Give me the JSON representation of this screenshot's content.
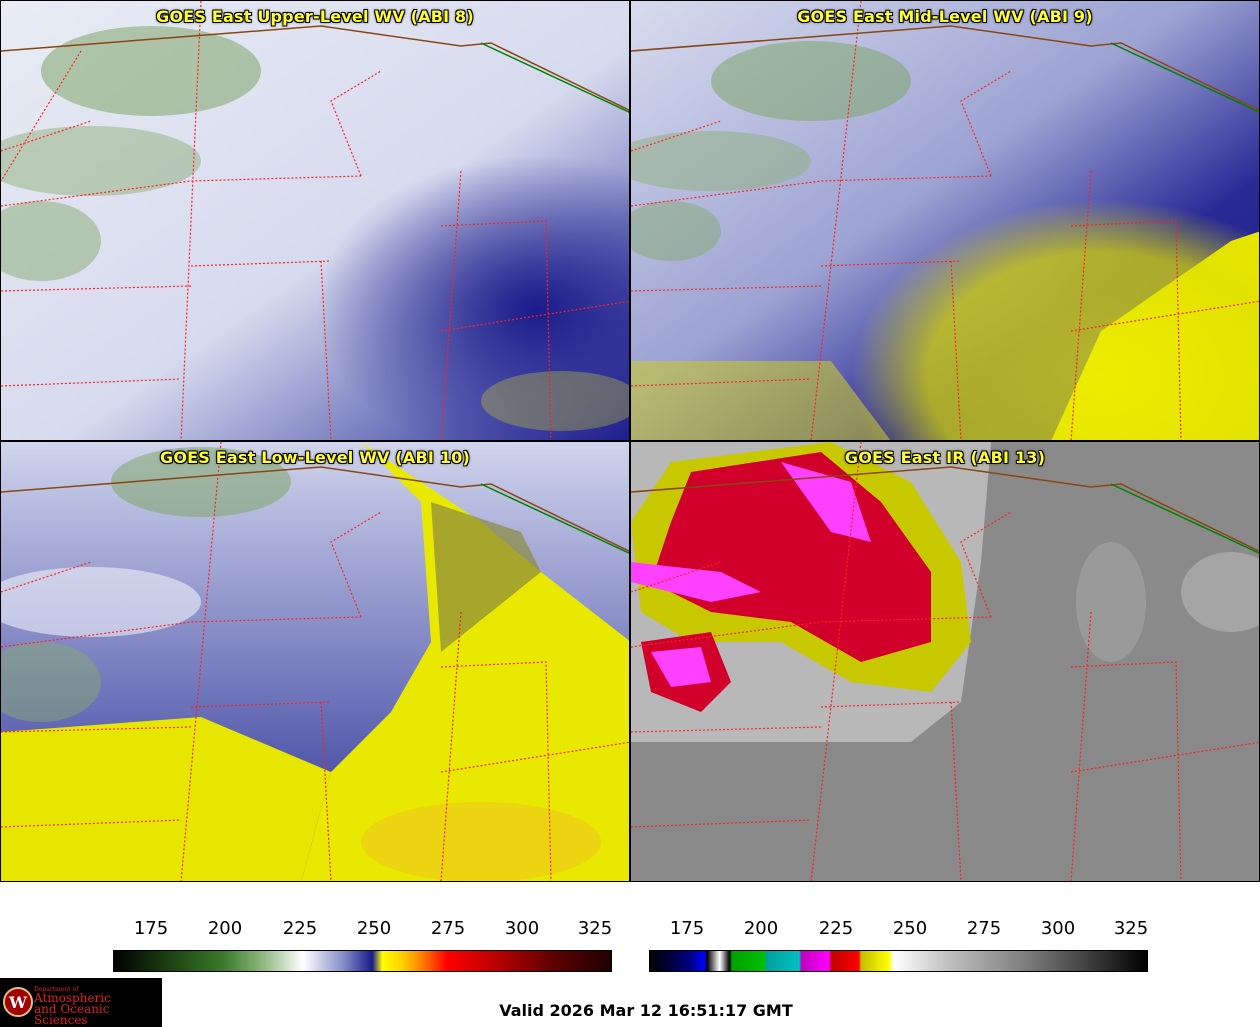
{
  "panels": [
    {
      "title": "GOES East Upper-Level WV (ABI 8)"
    },
    {
      "title": "GOES East Mid-Level WV (ABI 9)"
    },
    {
      "title": "GOES East Low-Level WV (ABI 10)"
    },
    {
      "title": "GOES East IR (ABI 13)"
    }
  ],
  "colorbars": [
    {
      "ticks": [
        "175",
        "200",
        "225",
        "250",
        "275",
        "300",
        "325"
      ]
    },
    {
      "ticks": [
        "175",
        "200",
        "225",
        "250",
        "275",
        "300",
        "325"
      ]
    }
  ],
  "valid_time": "Valid 2026 Mar 12 16:51:17 GMT",
  "logo": {
    "line1": "Department of",
    "line2": "Atmospheric",
    "line3": "and Oceanic Sciences"
  },
  "colors": {
    "wv_high": "#f0f2f8",
    "wv_mid": "#8890c8",
    "wv_low": "#1a1a8a",
    "wv_dry": "#e8e800",
    "ir_cold": "#d0002a",
    "ir_very_cold": "#ff40ff",
    "state_lines": "#ff2020",
    "border_us_canada": "#8b4513"
  }
}
